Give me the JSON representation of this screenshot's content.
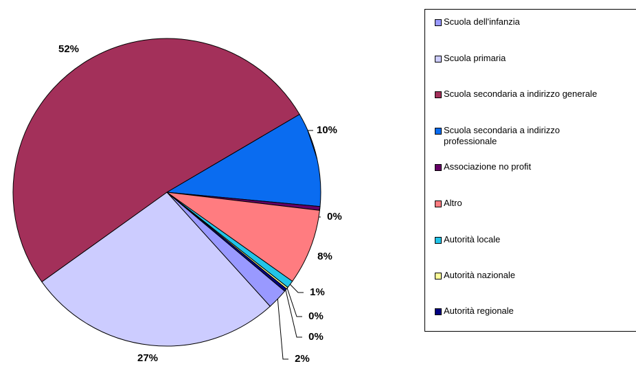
{
  "chart_data": {
    "type": "pie",
    "categories": [
      "Scuola dell'infanzia",
      "Scuola primaria",
      "Scuola secondaria a indirizzo generale",
      "Scuola secondaria a indirizzo professionale",
      "Associazione no profit",
      "Altro",
      "Autorità locale",
      "Autorità nazionale",
      "Autorità regionale"
    ],
    "values": [
      2.2,
      27,
      51.8,
      10,
      0.4,
      8,
      0.8,
      0.2,
      0.3
    ],
    "value_labels": [
      "2%",
      "27%",
      "52%",
      "10%",
      "0%",
      "8%",
      "1%",
      "0%",
      "0%"
    ],
    "colors": [
      "#9999ff",
      "#ccccff",
      "#a3305a",
      "#0a6cf0",
      "#660066",
      "#ff7c80",
      "#22c4e8",
      "#ffff99",
      "#000080"
    ],
    "legend": "right"
  }
}
